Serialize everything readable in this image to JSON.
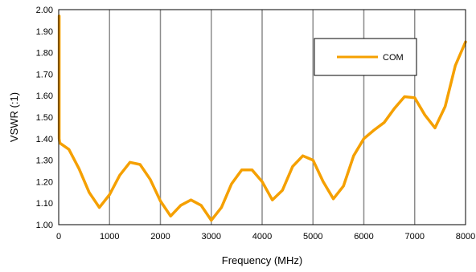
{
  "chart_data": {
    "type": "line",
    "title": "",
    "xlabel": "Frequency (MHz)",
    "ylabel": "VSWR (:1)",
    "xlim": [
      0,
      8000
    ],
    "ylim": [
      1.0,
      2.0
    ],
    "x_ticks": [
      0,
      1000,
      2000,
      3000,
      4000,
      5000,
      6000,
      7000,
      8000
    ],
    "y_ticks": [
      "1.00",
      "1.10",
      "1.20",
      "1.30",
      "1.40",
      "1.50",
      "1.60",
      "1.70",
      "1.80",
      "1.90",
      "2.00"
    ],
    "grid": {
      "vertical": true,
      "horizontal": false
    },
    "legend": {
      "position": "top-right",
      "entries": [
        "COM"
      ]
    },
    "series": [
      {
        "name": "COM",
        "color": "#F5A000",
        "x": [
          10,
          10,
          20,
          200,
          400,
          600,
          800,
          1000,
          1200,
          1400,
          1600,
          1800,
          2000,
          2200,
          2400,
          2600,
          2800,
          3000,
          3200,
          3400,
          3600,
          3800,
          4000,
          4200,
          4400,
          4600,
          4800,
          5000,
          5200,
          5400,
          5600,
          5800,
          6000,
          6200,
          6400,
          6600,
          6800,
          7000,
          7200,
          7400,
          7600,
          7800,
          8000
        ],
        "y": [
          1.97,
          1.4,
          1.38,
          1.35,
          1.26,
          1.15,
          1.08,
          1.14,
          1.23,
          1.29,
          1.28,
          1.21,
          1.11,
          1.04,
          1.09,
          1.115,
          1.09,
          1.02,
          1.08,
          1.19,
          1.255,
          1.255,
          1.2,
          1.115,
          1.16,
          1.27,
          1.32,
          1.3,
          1.2,
          1.12,
          1.18,
          1.32,
          1.4,
          1.44,
          1.475,
          1.54,
          1.595,
          1.59,
          1.51,
          1.45,
          1.55,
          1.74,
          1.85
        ]
      }
    ]
  }
}
